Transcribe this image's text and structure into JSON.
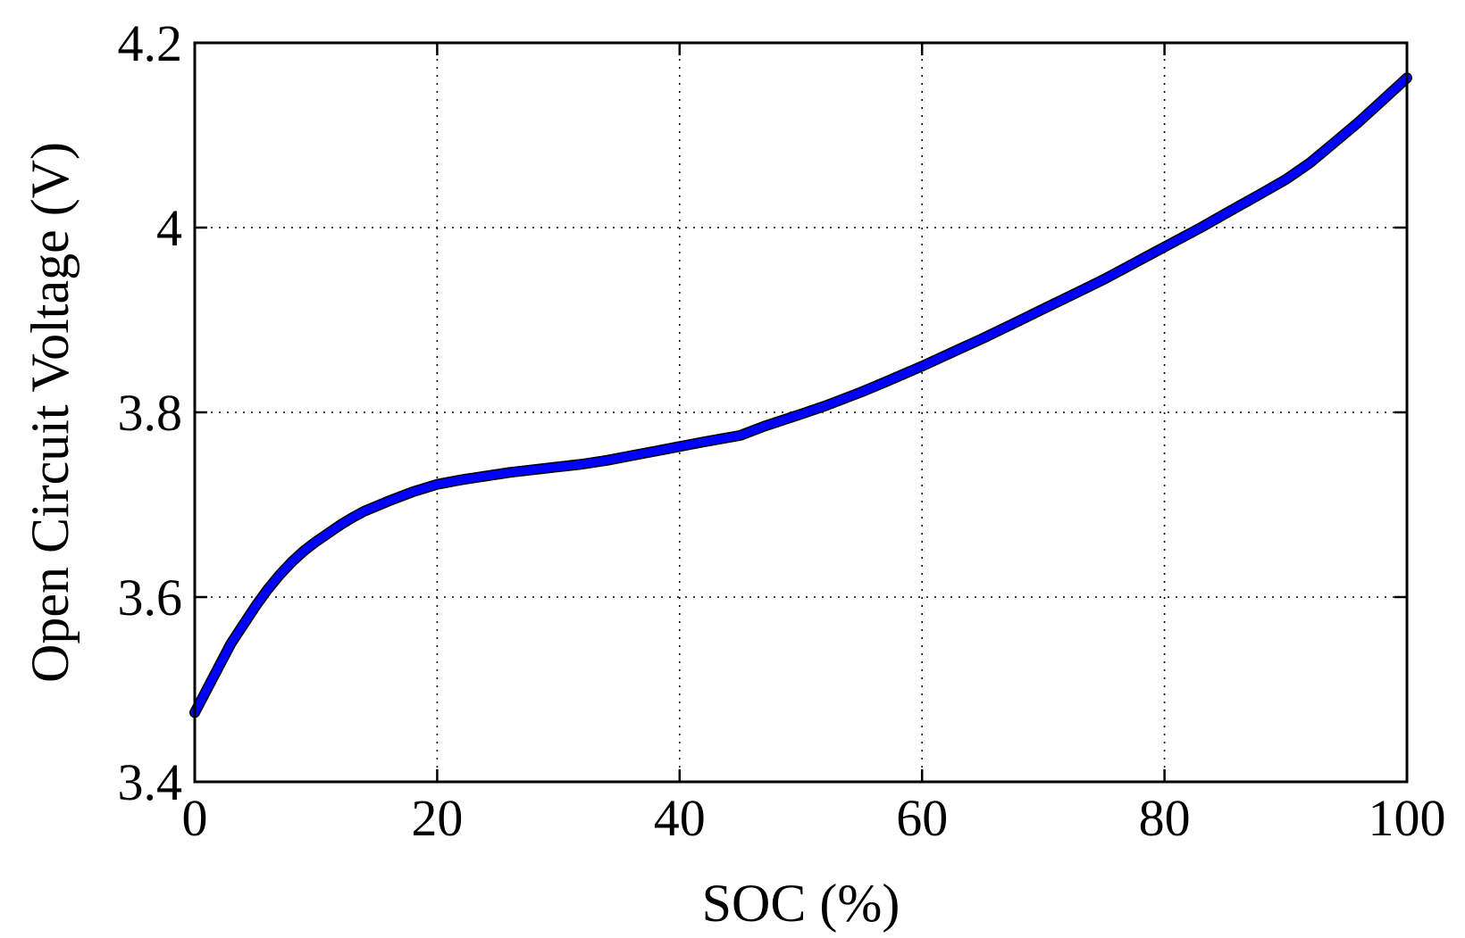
{
  "chart_data": {
    "type": "line",
    "title": "",
    "xlabel": "SOC (%)",
    "ylabel": "Open Circuit Voltage (V)",
    "xlim": [
      0,
      100
    ],
    "ylim": [
      3.4,
      4.2
    ],
    "xticks": [
      0,
      20,
      40,
      60,
      80,
      100
    ],
    "yticks": [
      3.4,
      3.6,
      3.8,
      4.0,
      4.2
    ],
    "xtick_labels": [
      "0",
      "20",
      "40",
      "60",
      "80",
      "100"
    ],
    "ytick_labels": [
      "3.4",
      "3.6",
      "3.8",
      "4",
      "4.2"
    ],
    "grid": true,
    "legend": "none",
    "series": [
      {
        "color": "#0000ff",
        "x": [
          0,
          1,
          2,
          3,
          4,
          5,
          6,
          7,
          8,
          9,
          10,
          12,
          13,
          14,
          16,
          18,
          19,
          20,
          22,
          24,
          26,
          28,
          30,
          32,
          34,
          36,
          38,
          40,
          42,
          45,
          47,
          50,
          52,
          55,
          57,
          60,
          63,
          65,
          68,
          70,
          73,
          75,
          78,
          80,
          83,
          85,
          88,
          90,
          92,
          94,
          96,
          98,
          100
        ],
        "y": [
          3.475,
          3.5,
          3.525,
          3.55,
          3.57,
          3.59,
          3.608,
          3.624,
          3.638,
          3.65,
          3.66,
          3.678,
          3.686,
          3.693,
          3.704,
          3.714,
          3.718,
          3.722,
          3.727,
          3.731,
          3.735,
          3.738,
          3.741,
          3.744,
          3.748,
          3.753,
          3.758,
          3.763,
          3.768,
          3.775,
          3.785,
          3.798,
          3.807,
          3.822,
          3.833,
          3.85,
          3.868,
          3.88,
          3.899,
          3.912,
          3.931,
          3.944,
          3.965,
          3.979,
          4.0,
          4.015,
          4.037,
          4.052,
          4.07,
          4.092,
          4.114,
          4.138,
          4.162
        ]
      }
    ]
  }
}
